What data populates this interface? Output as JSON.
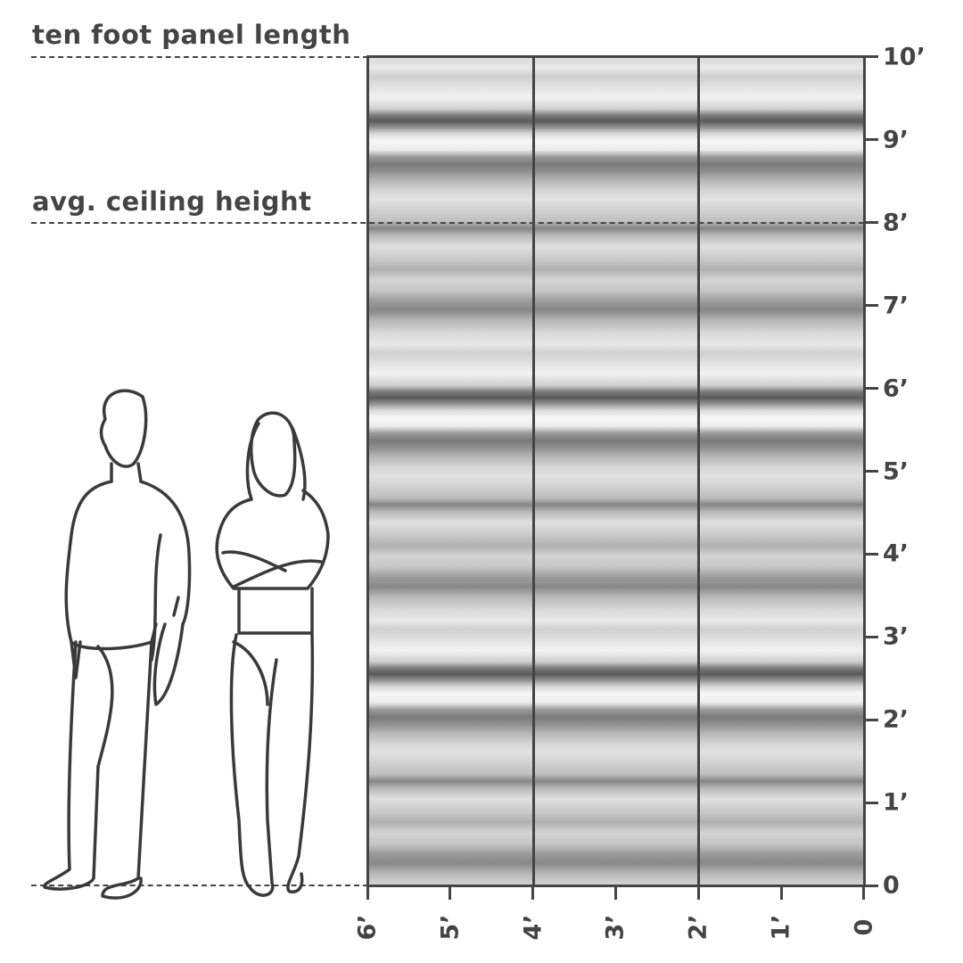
{
  "labels": {
    "panel_length": "ten foot panel length",
    "ceiling_height": "avg. ceiling height"
  },
  "vertical_scale": [
    "10’",
    "9’",
    "8’",
    "7’",
    "6’",
    "5’",
    "4’",
    "3’",
    "2’",
    "1’",
    "0"
  ],
  "horizontal_scale": [
    "6’",
    "5’",
    "4’",
    "3’",
    "2’",
    "1’",
    "0"
  ],
  "panels": {
    "count": 3,
    "height_ft": 10,
    "width_ft": 2,
    "pattern": "grayscale watercolor horizontal stripes"
  },
  "figures": [
    "man-outline",
    "woman-outline"
  ],
  "colors": {
    "line": "#444444",
    "background": "#ffffff"
  }
}
